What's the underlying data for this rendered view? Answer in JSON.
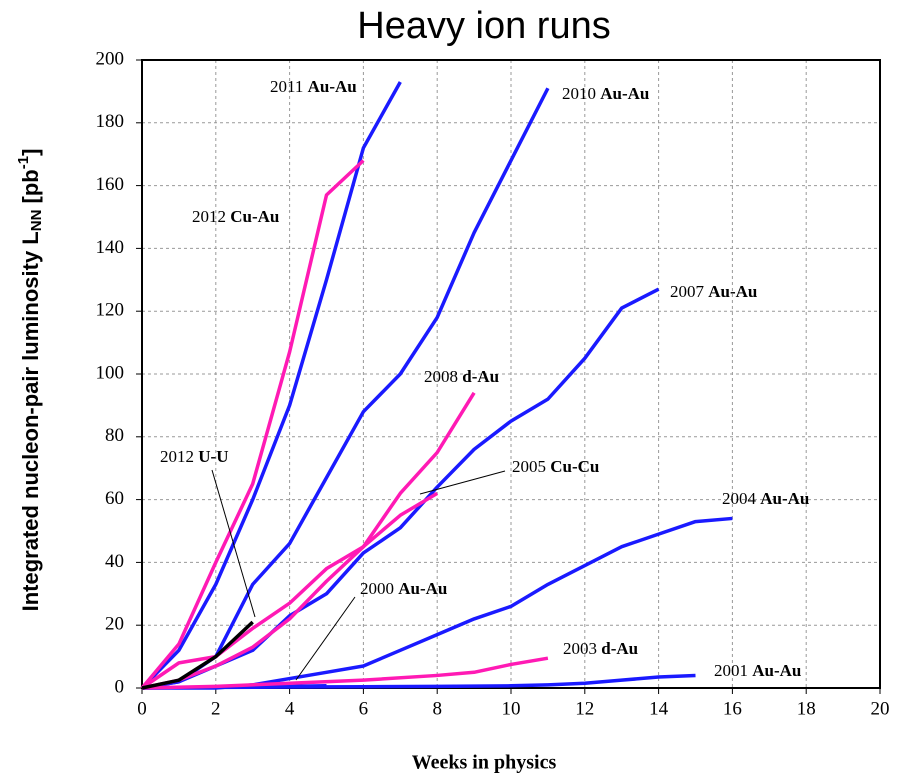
{
  "chart_data": {
    "type": "line",
    "title": "Heavy ion runs",
    "x_label": "Weeks in physics",
    "y_label": {
      "text": "Integrated nucleon-pair luminosity L",
      "sub": "NN",
      "mid": " [pb",
      "sup": "-1",
      "end": "]"
    },
    "xlim": [
      0,
      20
    ],
    "xticks": [
      0,
      2,
      4,
      6,
      8,
      10,
      12,
      14,
      16,
      18,
      20
    ],
    "ylim": [
      0,
      200
    ],
    "yticks": [
      0,
      20,
      40,
      60,
      80,
      100,
      120,
      140,
      160,
      180,
      200
    ],
    "grid": true,
    "series": [
      {
        "year": "2011",
        "system": "Au-Au",
        "color": "#1a1aff",
        "x": [
          0,
          1,
          2,
          3,
          4,
          5,
          6,
          7
        ],
        "values": [
          0,
          12,
          33,
          60,
          90,
          130,
          172,
          193
        ]
      },
      {
        "year": "2010",
        "system": "Au-Au",
        "color": "#1a1aff",
        "x": [
          0,
          1,
          2,
          3,
          4,
          5,
          6,
          7,
          8,
          9,
          10,
          11
        ],
        "values": [
          0,
          2,
          10,
          33,
          46,
          67,
          88,
          100,
          118,
          145,
          168,
          191
        ]
      },
      {
        "year": "2007",
        "system": "Au-Au",
        "color": "#1a1aff",
        "x": [
          0,
          1,
          2,
          3,
          4,
          5,
          6,
          7,
          8,
          9,
          10,
          11,
          12,
          13,
          14
        ],
        "values": [
          0,
          2,
          7,
          12,
          23,
          30,
          43,
          51,
          64,
          76,
          85,
          92,
          105,
          121,
          127
        ]
      },
      {
        "year": "2004",
        "system": "Au-Au",
        "color": "#1a1aff",
        "x": [
          0,
          1,
          2,
          3,
          4,
          5,
          6,
          7,
          8,
          9,
          10,
          11,
          12,
          13,
          14,
          15,
          16
        ],
        "values": [
          0,
          0,
          0,
          1,
          3,
          5,
          7,
          12,
          17,
          22,
          26,
          33,
          39,
          45,
          49,
          53,
          54
        ]
      },
      {
        "year": "2001",
        "system": "Au-Au",
        "color": "#1a1aff",
        "x": [
          0,
          2,
          4,
          6,
          8,
          10,
          11,
          12,
          13,
          14,
          15
        ],
        "values": [
          0,
          0.2,
          0.3,
          0.4,
          0.5,
          0.7,
          1,
          1.5,
          2.5,
          3.5,
          4
        ]
      },
      {
        "year": "2000",
        "system": "Au-Au",
        "color": "#1a1aff",
        "x": [
          0,
          2,
          4,
          5
        ],
        "values": [
          0,
          0.2,
          0.5,
          0.7
        ]
      },
      {
        "year": "2003",
        "system": "d-Au",
        "color": "#ff1ab4",
        "x": [
          0,
          2,
          4,
          6,
          8,
          9,
          10,
          11
        ],
        "values": [
          0,
          0.5,
          1.5,
          2.5,
          4,
          5,
          7.5,
          9.5
        ]
      },
      {
        "year": "2008",
        "system": "d-Au",
        "color": "#ff1ab4",
        "x": [
          0,
          1,
          2,
          3,
          4,
          5,
          6,
          7,
          8,
          9
        ],
        "values": [
          0,
          2.5,
          7,
          13,
          22,
          34,
          45,
          62,
          75,
          94
        ]
      },
      {
        "year": "2005",
        "system": "Cu-Cu",
        "color": "#ff1ab4",
        "x": [
          0,
          1,
          2,
          3,
          4,
          5,
          6,
          7,
          8
        ],
        "values": [
          0,
          8,
          10,
          19,
          27,
          38,
          45,
          55,
          62
        ]
      },
      {
        "year": "2012",
        "system": "Cu-Au",
        "color": "#ff1ab4",
        "x": [
          0,
          1,
          2,
          3,
          4,
          5,
          6
        ],
        "values": [
          0,
          14,
          40,
          65,
          107,
          157,
          168
        ]
      },
      {
        "year": "2012",
        "system": "U-U",
        "color": "#000000",
        "x": [
          0,
          1,
          2,
          3
        ],
        "values": [
          0,
          2.5,
          10,
          21
        ]
      }
    ]
  }
}
